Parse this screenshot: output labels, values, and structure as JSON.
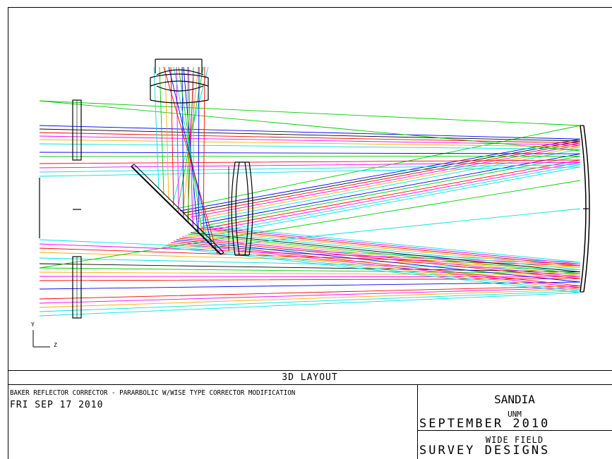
{
  "layout_title": "3D LAYOUT",
  "description": "BAKER REFLECTOR CORRECTOR - PARARBOLIC W/WISE TYPE CORRECTOR MODIFICATION",
  "date": "FRI SEP 17 2010",
  "org": {
    "line1": "SANDIA",
    "line2": "UNM",
    "line3": "SEPTEMBER  2010",
    "line4": "WIDE FIELD",
    "line5": "SURVEY  DESIGNS"
  },
  "axes": {
    "y": "Y",
    "z": "Z"
  },
  "ray_colors": {
    "blue": "#0000ff",
    "green": "#00cc00",
    "red": "#ff0000",
    "magenta": "#ff00ff",
    "orange": "#ffaa00",
    "cyan": "#00e0e0",
    "black": "#000000"
  }
}
